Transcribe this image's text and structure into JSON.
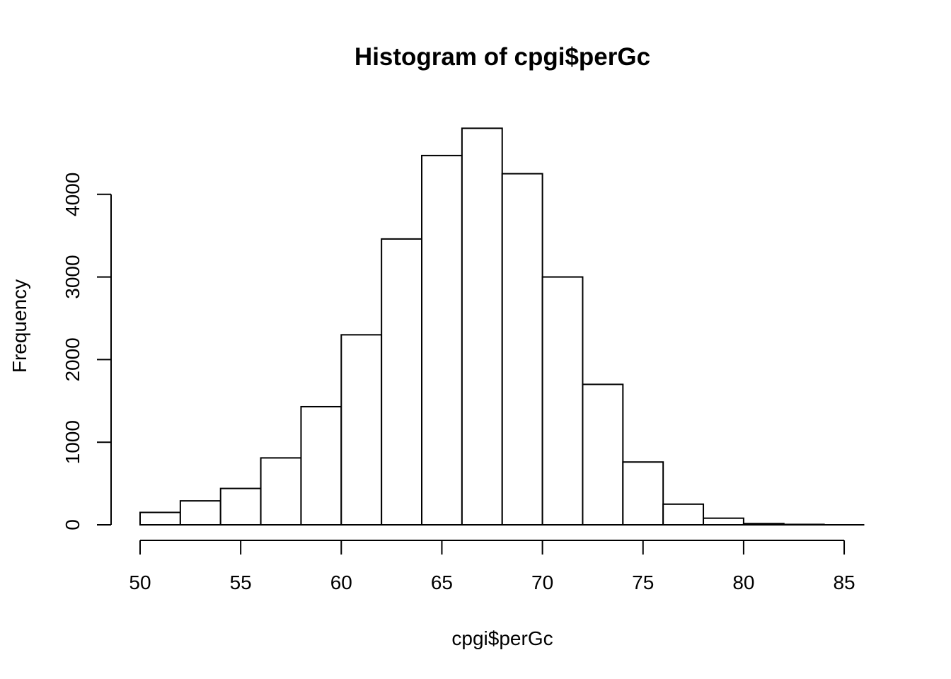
{
  "chart_data": {
    "type": "bar",
    "title": "Histogram of cpgi$perGc",
    "xlabel": "cpgi$perGc",
    "ylabel": "Frequency",
    "bins": [
      {
        "start": 50,
        "end": 52,
        "count": 150
      },
      {
        "start": 52,
        "end": 54,
        "count": 290
      },
      {
        "start": 54,
        "end": 56,
        "count": 440
      },
      {
        "start": 56,
        "end": 58,
        "count": 810
      },
      {
        "start": 58,
        "end": 60,
        "count": 1430
      },
      {
        "start": 60,
        "end": 62,
        "count": 2300
      },
      {
        "start": 62,
        "end": 64,
        "count": 3460
      },
      {
        "start": 64,
        "end": 66,
        "count": 4470
      },
      {
        "start": 66,
        "end": 68,
        "count": 4800
      },
      {
        "start": 68,
        "end": 70,
        "count": 4250
      },
      {
        "start": 70,
        "end": 72,
        "count": 3000
      },
      {
        "start": 72,
        "end": 74,
        "count": 1700
      },
      {
        "start": 74,
        "end": 76,
        "count": 760
      },
      {
        "start": 76,
        "end": 78,
        "count": 250
      },
      {
        "start": 78,
        "end": 80,
        "count": 80
      },
      {
        "start": 80,
        "end": 82,
        "count": 15
      },
      {
        "start": 82,
        "end": 84,
        "count": 5
      },
      {
        "start": 84,
        "end": 86,
        "count": 0
      }
    ],
    "x_ticks": [
      "50",
      "55",
      "60",
      "65",
      "70",
      "75",
      "80",
      "85"
    ],
    "y_ticks": [
      "0",
      "1000",
      "2000",
      "3000",
      "4000"
    ],
    "xlim": [
      50,
      86
    ],
    "ylim": [
      0,
      4800
    ],
    "grid": false,
    "legend": "none"
  }
}
